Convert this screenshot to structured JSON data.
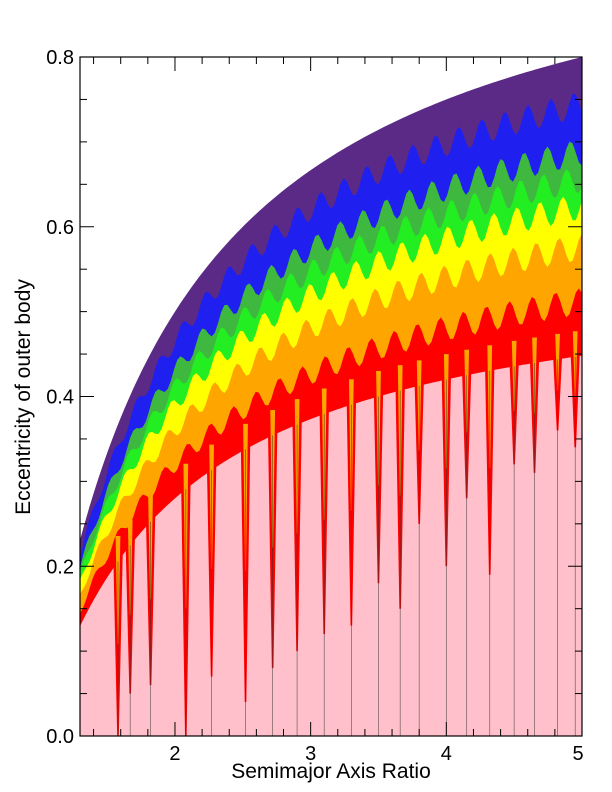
{
  "chart_data": {
    "type": "heatmap",
    "xlabel": "Semimajor Axis Ratio",
    "ylabel": "Eccentricity of outer body",
    "xlim": [
      1.3,
      5.0
    ],
    "ylim": [
      0.0,
      0.8
    ],
    "xticks": [
      2,
      3,
      4,
      5
    ],
    "yticks": [
      0.0,
      0.2,
      0.4,
      0.6,
      0.8
    ],
    "xtick_labels": [
      "2",
      "3",
      "4",
      "5"
    ],
    "ytick_labels": [
      "0.0",
      "0.2",
      "0.4",
      "0.6",
      "0.8"
    ],
    "xminor_step": 0.2,
    "yminor_step": 0.05,
    "grid": false,
    "boundary_curve": {
      "description_of_formula": "e_max = 1 - 1/a",
      "x": [
        1.3,
        1.5,
        1.75,
        2.0,
        2.5,
        3.0,
        3.5,
        4.0,
        4.5,
        5.0
      ],
      "y": [
        0.231,
        0.333,
        0.429,
        0.5,
        0.6,
        0.667,
        0.714,
        0.75,
        0.778,
        0.8
      ]
    },
    "color_bands": [
      {
        "color": "#5b2a86",
        "upper_frac": 1.0
      },
      {
        "color": "#1f1ff0",
        "upper_frac": 0.93
      },
      {
        "color": "#3fb83f",
        "upper_frac": 0.86
      },
      {
        "color": "#22ee22",
        "upper_frac": 0.82
      },
      {
        "color": "#ffff00",
        "upper_frac": 0.78
      },
      {
        "color": "#ffa500",
        "upper_frac": 0.72
      },
      {
        "color": "#ff0000",
        "upper_frac": 0.64
      },
      {
        "color": "#ffc0cb",
        "upper_frac": 0.56
      }
    ],
    "resonance_spikes": {
      "x": [
        1.58,
        1.67,
        1.82,
        2.08,
        2.27,
        2.52,
        2.72,
        2.9,
        3.1,
        3.3,
        3.5,
        3.66,
        3.8,
        4.0,
        4.15,
        4.32,
        4.5,
        4.65,
        4.82,
        4.95
      ],
      "min_y": [
        0.0,
        0.05,
        0.06,
        0.0,
        0.07,
        0.04,
        0.08,
        0.1,
        0.12,
        0.13,
        0.18,
        0.15,
        0.25,
        0.2,
        0.28,
        0.19,
        0.32,
        0.31,
        0.36,
        0.34
      ]
    }
  }
}
